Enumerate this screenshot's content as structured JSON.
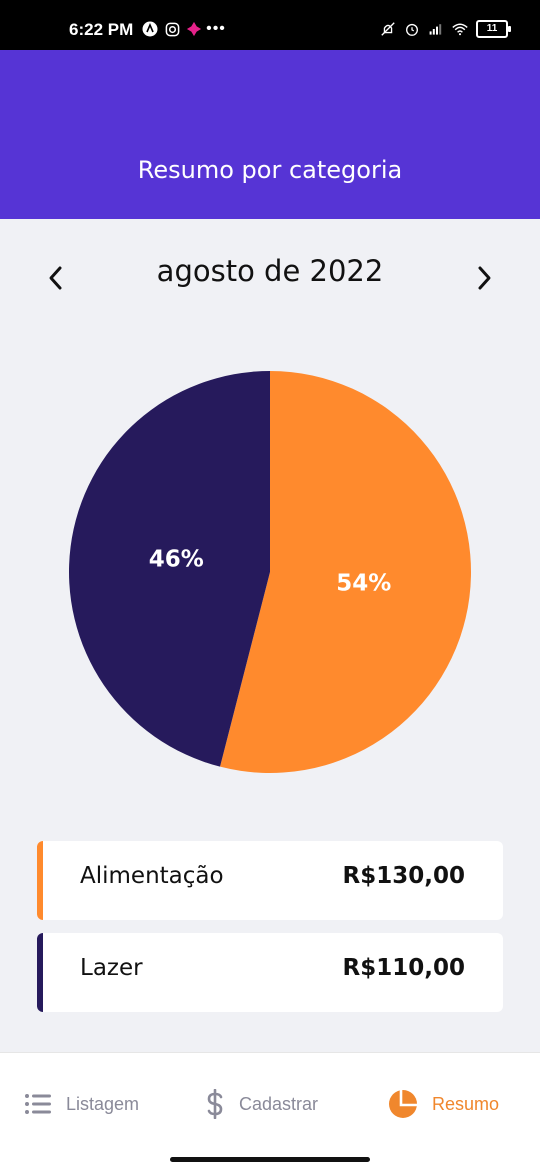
{
  "status_bar": {
    "time": "6:22 PM",
    "battery": "11"
  },
  "header": {
    "title": "Resumo por categoria"
  },
  "month_nav": {
    "label": "agosto de 2022",
    "prev_icon": "chevron-left-icon",
    "next_icon": "chevron-right-icon"
  },
  "chart_data": {
    "type": "pie",
    "slices": [
      {
        "label": "Alimentação",
        "value": 54,
        "display": "54%",
        "color": "#ff8a2d"
      },
      {
        "label": "Lazer",
        "value": 46,
        "display": "46%",
        "color": "#261a5c"
      }
    ]
  },
  "legend": [
    {
      "name": "Alimentação",
      "amount": "R$130,00",
      "color": "#ff8a2d"
    },
    {
      "name": "Lazer",
      "amount": "R$110,00",
      "color": "#261a5c"
    }
  ],
  "bottom_nav": {
    "tabs": [
      {
        "label": "Listagem",
        "icon": "list-icon"
      },
      {
        "label": "Cadastrar",
        "icon": "dollar-icon"
      },
      {
        "label": "Resumo",
        "icon": "pie-chart-icon",
        "active": true
      }
    ]
  },
  "colors": {
    "accent": "#5634d5",
    "active_tab": "#f0872d"
  }
}
